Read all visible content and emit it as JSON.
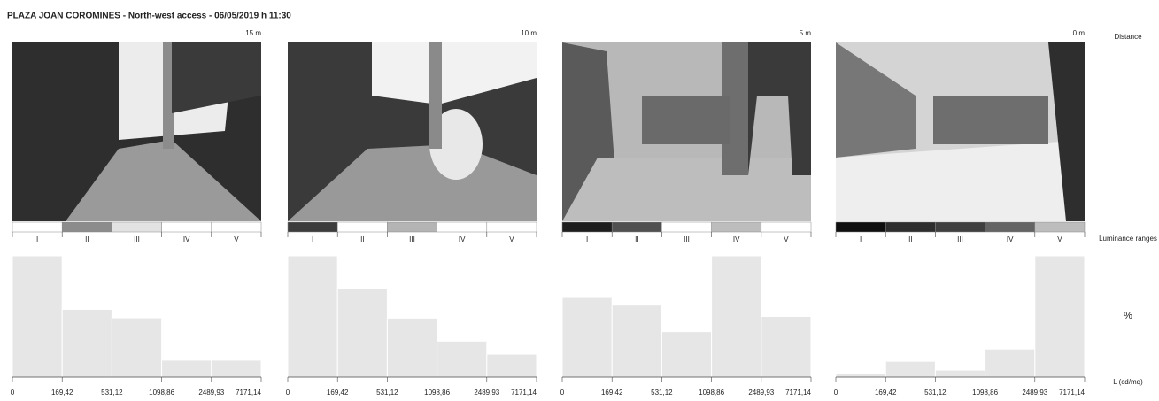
{
  "title": "PLAZA JOAN COROMINES - North-west access - 06/05/2019 h 11:30",
  "side_labels": {
    "distance": "Distance",
    "ranges": "Luminance ranges",
    "percent": "%",
    "unit": "L (cd/mq)"
  },
  "chart_data": [
    {
      "type": "histogram",
      "distance": "15 m",
      "categories": [
        "I",
        "II",
        "III",
        "IV",
        "V"
      ],
      "range_colors": [
        "#ffffff",
        "#8c8c8c",
        "#e2e2e2",
        "#ffffff",
        "#ffffff"
      ],
      "bins": [
        0,
        {
          "value": 169.42,
          "label": "169,42"
        },
        {
          "value": 531.12,
          "label": "531,12"
        },
        {
          "value": 1098.86,
          "label": "1098,86"
        },
        {
          "value": 2489.93,
          "label": "2489,93"
        },
        {
          "value": 7171.14,
          "label": "7171,14"
        }
      ],
      "values": [
        43,
        24,
        21,
        6,
        6
      ],
      "color": "#e6e6e6",
      "ylim": [
        0,
        43
      ]
    },
    {
      "type": "histogram",
      "distance": "10 m",
      "categories": [
        "I",
        "II",
        "III",
        "IV",
        "V"
      ],
      "range_colors": [
        "#3c3c3c",
        "#ffffff",
        "#b4b4b4",
        "#ffffff",
        "#ffffff"
      ],
      "bins": [
        0,
        {
          "value": 169.42,
          "label": "169,42"
        },
        {
          "value": 531.12,
          "label": "531,12"
        },
        {
          "value": 1098.86,
          "label": "1098,86"
        },
        {
          "value": 2489.93,
          "label": "2489,93"
        },
        {
          "value": 7171.14,
          "label": "7171,14"
        }
      ],
      "values": [
        37,
        27,
        18,
        11,
        7
      ],
      "color": "#e6e6e6",
      "ylim": [
        0,
        37
      ]
    },
    {
      "type": "histogram",
      "distance": "5 m",
      "categories": [
        "I",
        "II",
        "III",
        "IV",
        "V"
      ],
      "range_colors": [
        "#1e1e1e",
        "#505050",
        "#ffffff",
        "#bdbdbd",
        "#ffffff"
      ],
      "bins": [
        0,
        {
          "value": 169.42,
          "label": "169,42"
        },
        {
          "value": 531.12,
          "label": "531,12"
        },
        {
          "value": 1098.86,
          "label": "1098,86"
        },
        {
          "value": 2489.93,
          "label": "2489,93"
        },
        {
          "value": 7171.14,
          "label": "7171,14"
        }
      ],
      "values": [
        21,
        19,
        12,
        32,
        16
      ],
      "color": "#e6e6e6",
      "ylim": [
        0,
        32
      ]
    },
    {
      "type": "histogram",
      "distance": "0 m",
      "categories": [
        "I",
        "II",
        "III",
        "IV",
        "V"
      ],
      "range_colors": [
        "#0f0f0f",
        "#2e2e2e",
        "#3f3f3f",
        "#646464",
        "#bdbdbd"
      ],
      "bins": [
        0,
        {
          "value": 169.42,
          "label": "169,42"
        },
        {
          "value": 531.12,
          "label": "531,12"
        },
        {
          "value": 1098.86,
          "label": "1098,86"
        },
        {
          "value": 2489.93,
          "label": "2489,93"
        },
        {
          "value": 7171.14,
          "label": "7171,14"
        }
      ],
      "values": [
        2,
        9,
        4,
        16,
        69
      ],
      "color": "#e6e6e6",
      "ylim": [
        0,
        69
      ]
    }
  ]
}
